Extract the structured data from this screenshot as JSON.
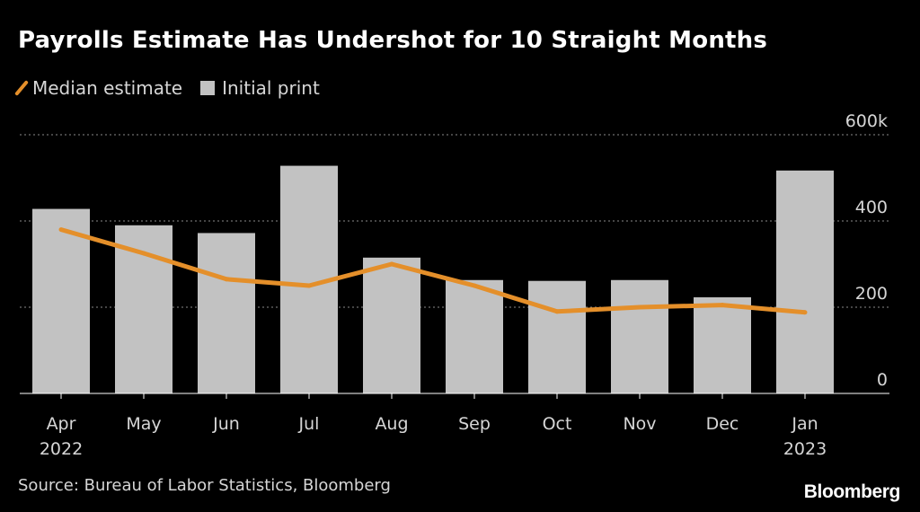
{
  "chart_data": {
    "type": "bar",
    "title": "Payrolls Estimate Has Undershot for 10 Straight Months",
    "categories": [
      "Apr",
      "May",
      "Jun",
      "Jul",
      "Aug",
      "Sep",
      "Oct",
      "Nov",
      "Dec",
      "Jan"
    ],
    "year_labels": [
      "2022",
      "",
      "",
      "",
      "",
      "",
      "",
      "",
      "",
      "2023"
    ],
    "series": [
      {
        "name": "Initial print",
        "type": "bar",
        "color": "#c2c2c2",
        "values": [
          428,
          390,
          372,
          528,
          315,
          263,
          261,
          263,
          223,
          517
        ]
      },
      {
        "name": "Median estimate",
        "type": "line",
        "color": "#e48f2a",
        "values": [
          380,
          325,
          265,
          250,
          300,
          250,
          190,
          200,
          205,
          188
        ]
      }
    ],
    "ylim": [
      0,
      600
    ],
    "yticks": [
      0,
      200,
      400,
      600
    ],
    "ytick_labels": [
      "0",
      "200",
      "400",
      "600k"
    ],
    "xlabel": "",
    "ylabel": "",
    "grid": true,
    "legend_position": "top-left"
  },
  "source": "Source: Bureau of Labor Statistics, Bloomberg",
  "brand": "Bloomberg",
  "colors": {
    "background": "#000000",
    "grid": "#8a8a8a",
    "axis": "#ffffff",
    "tick_text": "#d6d6d6"
  }
}
